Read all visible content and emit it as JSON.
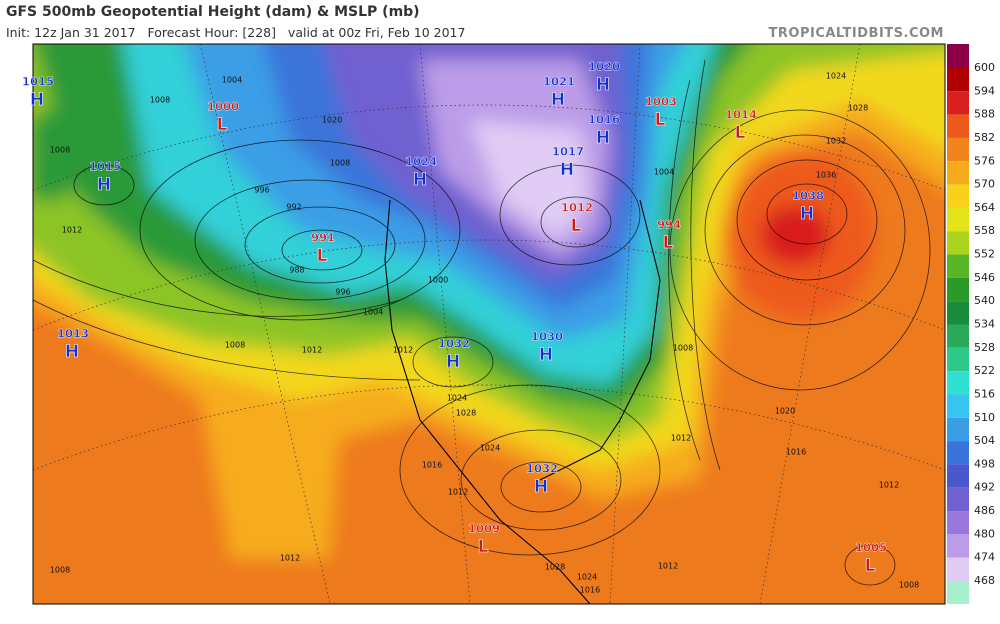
{
  "header": {
    "title": "GFS 500mb Geopotential Height (dam) & MSLP (mb)",
    "subtitle": "Init: 12z Jan 31 2017   Forecast Hour: [228]   valid at 00z Fri, Feb 10 2017",
    "site": "TROPICALTIDBITS.COM"
  },
  "colorbar": {
    "labels": [
      "600",
      "594",
      "588",
      "582",
      "576",
      "570",
      "564",
      "558",
      "552",
      "546",
      "540",
      "534",
      "528",
      "522",
      "516",
      "510",
      "504",
      "498",
      "492",
      "486",
      "480",
      "474",
      "468"
    ],
    "colors": [
      "#8b0046",
      "#b00000",
      "#d81e1e",
      "#ee5a1e",
      "#f2841c",
      "#f6ac1a",
      "#f8d21a",
      "#e4e41a",
      "#aad41e",
      "#5ab428",
      "#2c9a28",
      "#1a8c3c",
      "#28aa5a",
      "#2ec98a",
      "#30e0d0",
      "#38c4f0",
      "#3a9ee6",
      "#3a74da",
      "#4a58cc",
      "#7060d0",
      "#9878dc",
      "#bc9ce8",
      "#e0ccf4",
      "#a8f0cc"
    ]
  },
  "centers": [
    {
      "kind": "H",
      "pressure": "1015"
    },
    {
      "kind": "H",
      "pressure": "1015"
    },
    {
      "kind": "H",
      "pressure": "1013"
    },
    {
      "kind": "L",
      "pressure": "1000"
    },
    {
      "kind": "L",
      "pressure": "991"
    },
    {
      "kind": "H",
      "pressure": "1024"
    },
    {
      "kind": "H",
      "pressure": "1032"
    },
    {
      "kind": "H",
      "pressure": "1030"
    },
    {
      "kind": "H",
      "pressure": "1017"
    },
    {
      "kind": "H",
      "pressure": "1021"
    },
    {
      "kind": "H",
      "pressure": "1020"
    },
    {
      "kind": "H",
      "pressure": "1016"
    },
    {
      "kind": "L",
      "pressure": "1012"
    },
    {
      "kind": "L",
      "pressure": "1003"
    },
    {
      "kind": "L",
      "pressure": "994"
    },
    {
      "kind": "L",
      "pressure": "1014"
    },
    {
      "kind": "H",
      "pressure": "1038"
    },
    {
      "kind": "H",
      "pressure": "1032"
    },
    {
      "kind": "L",
      "pressure": "1009"
    },
    {
      "kind": "L",
      "pressure": "1005"
    }
  ],
  "isobar_labels": [
    "1004",
    "1008",
    "1008",
    "1012",
    "1008",
    "1012",
    "1020",
    "1008",
    "996",
    "992",
    "988",
    "996",
    "1004",
    "1000",
    "1012",
    "1024",
    "1028",
    "1024",
    "1016",
    "1012",
    "1028",
    "1024",
    "1016",
    "1012",
    "1008",
    "1024",
    "1028",
    "1032",
    "1036",
    "1020",
    "1016",
    "1012",
    "1012",
    "1004",
    "1008",
    "1008",
    "1012"
  ]
}
